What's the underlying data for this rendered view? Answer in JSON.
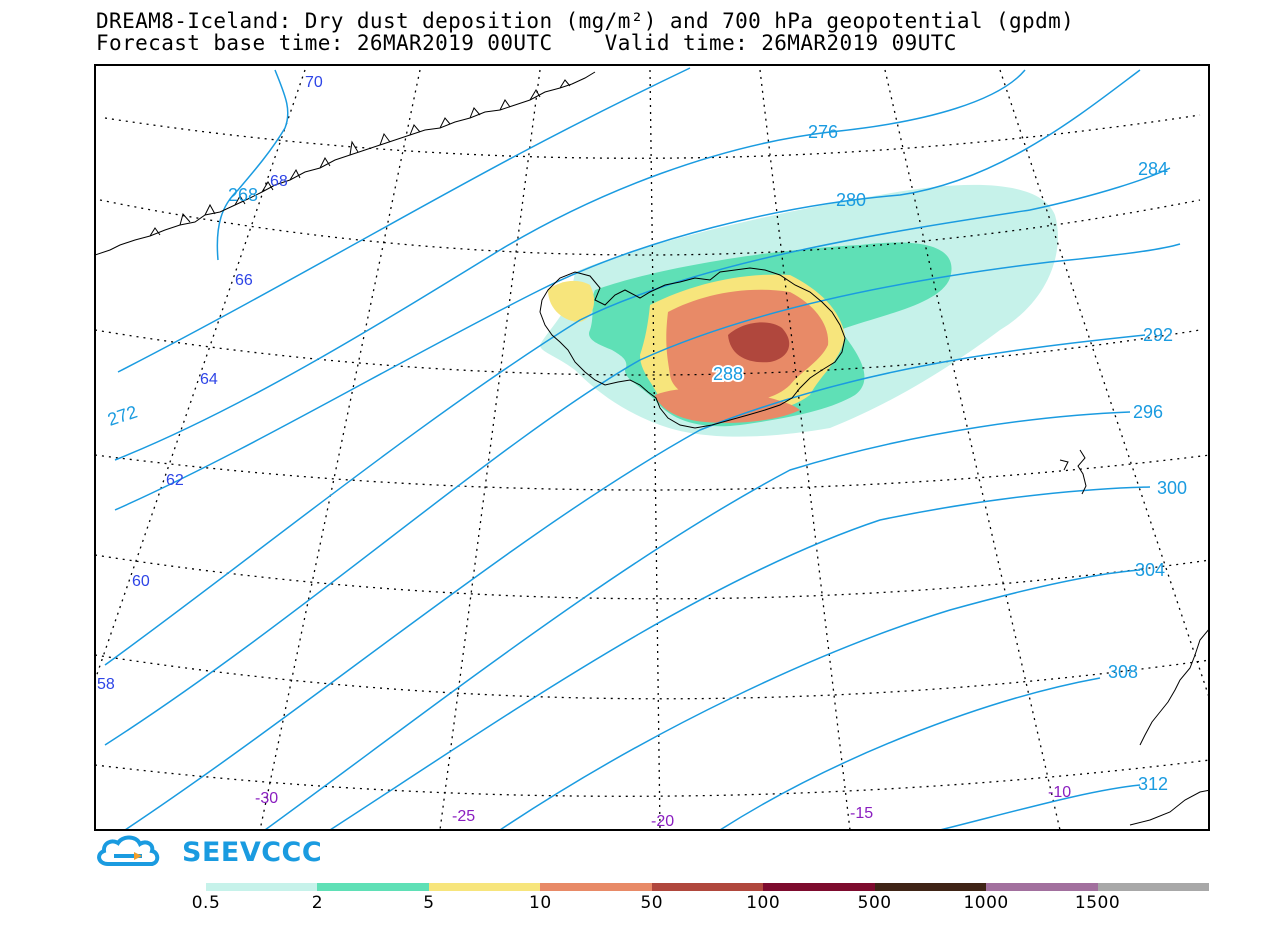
{
  "title": {
    "line1": "DREAM8-Iceland: Dry dust deposition (mg/m²) and 700 hPa geopotential (gpdm)",
    "line2": "Forecast base time: 26MAR2019 00UTC    Valid time: 26MAR2019 09UTC"
  },
  "latitude_labels": [
    "70",
    "68",
    "66",
    "64",
    "62",
    "60",
    "58"
  ],
  "longitude_labels": [
    "-30",
    "-25",
    "-20",
    "-15",
    "-10"
  ],
  "contour_labels": [
    "268",
    "272",
    "276",
    "280",
    "284",
    "288",
    "292",
    "296",
    "300",
    "304",
    "308",
    "312"
  ],
  "legend": {
    "labels": [
      "0.5",
      "2",
      "5",
      "10",
      "50",
      "100",
      "500",
      "1000",
      "1500"
    ],
    "colors": [
      "#c6f2ea",
      "#5fe0b6",
      "#f7e57c",
      "#e88a67",
      "#b0473d",
      "#7d0b2e",
      "#3f2416",
      "#a2709e",
      "#a8a8a8"
    ]
  },
  "colors": {
    "contour": "#1a9be0",
    "lat_label": "#2e45e6",
    "lon_label": "#8a1ec0",
    "coast": "#000000"
  },
  "logo": {
    "text": "SEEVCCC",
    "icon": "cloud-icon"
  }
}
